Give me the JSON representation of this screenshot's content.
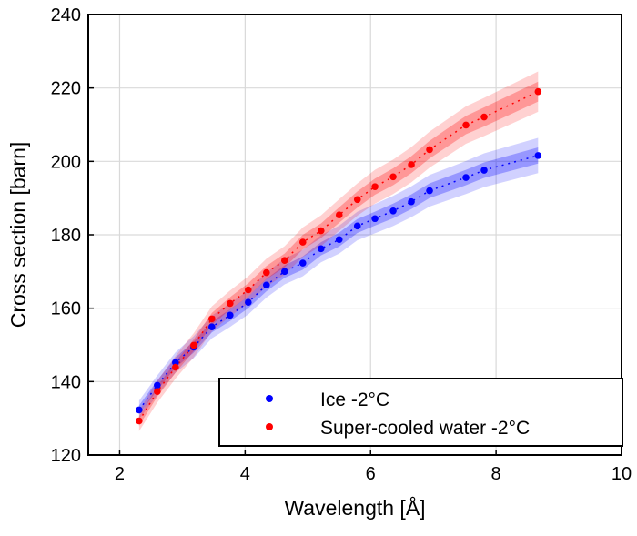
{
  "chart_data": {
    "type": "scatter",
    "title": "",
    "xlabel": "Wavelength [Å]",
    "ylabel": "Cross section [barn]",
    "xlim": [
      1.5,
      10
    ],
    "ylim": [
      120,
      240
    ],
    "xticks": [
      2,
      4,
      6,
      8,
      10
    ],
    "yticks": [
      120,
      140,
      160,
      180,
      200,
      220,
      240
    ],
    "grid": true,
    "legend": "bottom-right",
    "x": [
      2.31,
      2.6,
      2.89,
      3.18,
      3.47,
      3.76,
      4.05,
      4.34,
      4.63,
      4.92,
      5.21,
      5.5,
      5.79,
      6.07,
      6.36,
      6.65,
      6.94,
      7.52,
      7.81,
      8.67
    ],
    "series": [
      {
        "name": "Ice -2°C",
        "color": "#0000ff",
        "values": [
          132.3,
          139.0,
          145.2,
          149.4,
          154.9,
          158.1,
          161.6,
          166.3,
          170.0,
          172.3,
          176.2,
          178.7,
          182.4,
          184.4,
          186.5,
          189.0,
          192.0,
          195.6,
          197.6,
          201.6
        ],
        "band_inner": [
          1.2,
          1.3,
          1.4,
          1.5,
          1.5,
          1.6,
          1.6,
          1.7,
          1.7,
          1.8,
          1.8,
          1.9,
          1.9,
          1.9,
          2.0,
          2.0,
          2.0,
          2.1,
          2.1,
          2.2
        ],
        "band_outer": [
          2.5,
          2.7,
          2.8,
          3.0,
          3.1,
          3.2,
          3.3,
          3.4,
          3.5,
          3.6,
          3.7,
          3.8,
          3.9,
          4.0,
          4.1,
          4.2,
          4.3,
          4.5,
          4.6,
          4.8
        ]
      },
      {
        "name": "Super-cooled water -2°C",
        "color": "#ff0000",
        "values": [
          129.3,
          137.3,
          143.9,
          149.9,
          157.1,
          161.3,
          165.0,
          169.7,
          173.0,
          178.0,
          181.1,
          185.4,
          189.6,
          193.1,
          195.8,
          199.1,
          203.2,
          209.9,
          212.1,
          219.0
        ],
        "band_inner": [
          1.3,
          1.4,
          1.5,
          1.6,
          1.6,
          1.7,
          1.8,
          1.8,
          1.9,
          2.0,
          2.0,
          2.1,
          2.2,
          2.2,
          2.3,
          2.3,
          2.4,
          2.5,
          2.6,
          2.7
        ],
        "band_outer": [
          2.8,
          3.0,
          3.1,
          3.3,
          3.4,
          3.5,
          3.7,
          3.8,
          3.9,
          4.0,
          4.2,
          4.3,
          4.4,
          4.6,
          4.7,
          4.8,
          4.9,
          5.1,
          5.2,
          5.5
        ]
      }
    ]
  }
}
